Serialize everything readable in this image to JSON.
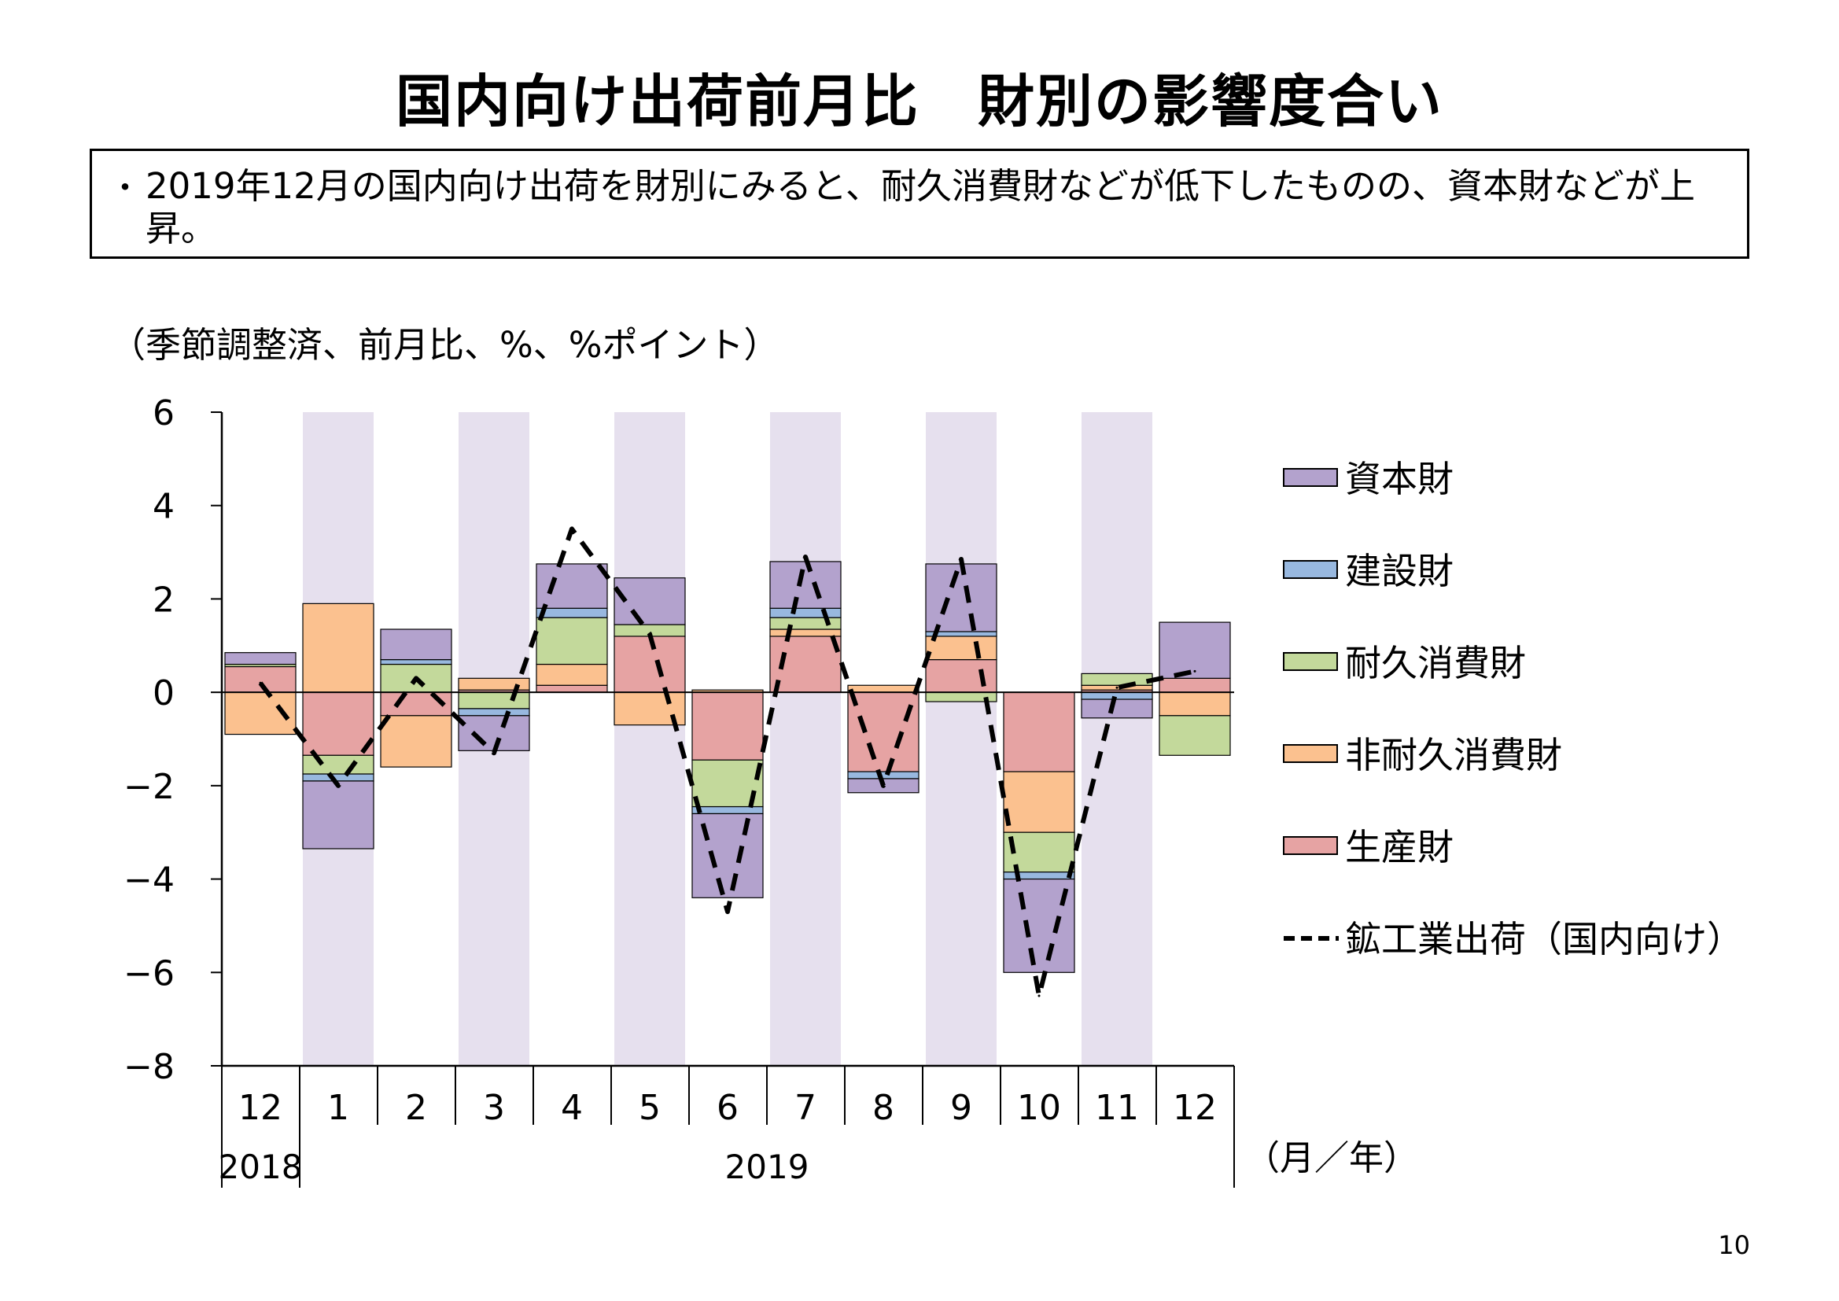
{
  "title": "国内向け出荷前月比　財別の影響度合い",
  "summary": {
    "bullet": "・",
    "text": "2019年12月の国内向け出荷を財別にみると、耐久消費財などが低下したものの、資本財などが上昇。"
  },
  "units_note": "（季節調整済、前月比、%、%ポイント）",
  "page_number": "10",
  "chart_data": {
    "type": "bar",
    "stacked": true,
    "categories": [
      "12",
      "1",
      "2",
      "3",
      "4",
      "5",
      "6",
      "7",
      "8",
      "9",
      "10",
      "11",
      "12"
    ],
    "year_labels": [
      "2018",
      "2019"
    ],
    "x_unit_label": "（月／年）",
    "ylim": [
      -8,
      6
    ],
    "yticks": [
      6,
      4,
      2,
      0,
      -2,
      -4,
      -6,
      -8
    ],
    "ytick_labels": [
      "6",
      "4",
      "2",
      "0",
      "−2",
      "−4",
      "−6",
      "−8"
    ],
    "shaded_categories": [
      "1",
      "3",
      "5",
      "7",
      "9",
      "11"
    ],
    "shade_color": "#e6e0ee",
    "series": [
      {
        "name": "生産財",
        "color": "#e6a3a3",
        "values": [
          0.55,
          -1.35,
          -0.5,
          0.05,
          0.15,
          1.2,
          -1.45,
          1.2,
          -1.7,
          0.7,
          -1.7,
          0.05,
          0.3
        ]
      },
      {
        "name": "非耐久消費財",
        "color": "#fbc18f",
        "values": [
          -0.9,
          1.9,
          -1.1,
          0.25,
          0.45,
          -0.7,
          0.05,
          0.15,
          0.15,
          0.5,
          -1.3,
          0.1,
          -0.5
        ]
      },
      {
        "name": "耐久消費財",
        "color": "#c3d99b",
        "values": [
          0.05,
          -0.4,
          0.6,
          -0.35,
          1.0,
          0.25,
          -1.0,
          0.25,
          0.0,
          -0.2,
          -0.85,
          0.25,
          -0.85
        ]
      },
      {
        "name": "建設財",
        "color": "#98b8df",
        "values": [
          0.0,
          -0.15,
          0.1,
          -0.15,
          0.2,
          0.0,
          -0.15,
          0.2,
          -0.15,
          0.1,
          -0.15,
          -0.15,
          0.0
        ]
      },
      {
        "name": "資本財",
        "color": "#b3a2cd",
        "values": [
          0.25,
          -1.45,
          0.65,
          -0.75,
          0.95,
          1.0,
          -1.8,
          1.0,
          -0.3,
          1.45,
          -2.0,
          -0.4,
          1.2
        ]
      }
    ],
    "line": {
      "name": "鉱工業出荷（国内向け）",
      "style": "dashed",
      "color": "#000000",
      "values": [
        0.2,
        -2.0,
        0.3,
        -1.3,
        3.5,
        1.25,
        -4.7,
        2.9,
        -2.0,
        2.85,
        -6.5,
        0.1,
        0.45
      ]
    },
    "legend": {
      "placement": "right",
      "items": [
        "資本財",
        "建設財",
        "耐久消費財",
        "非耐久消費財",
        "生産財",
        "鉱工業出荷（国内向け）"
      ]
    }
  }
}
